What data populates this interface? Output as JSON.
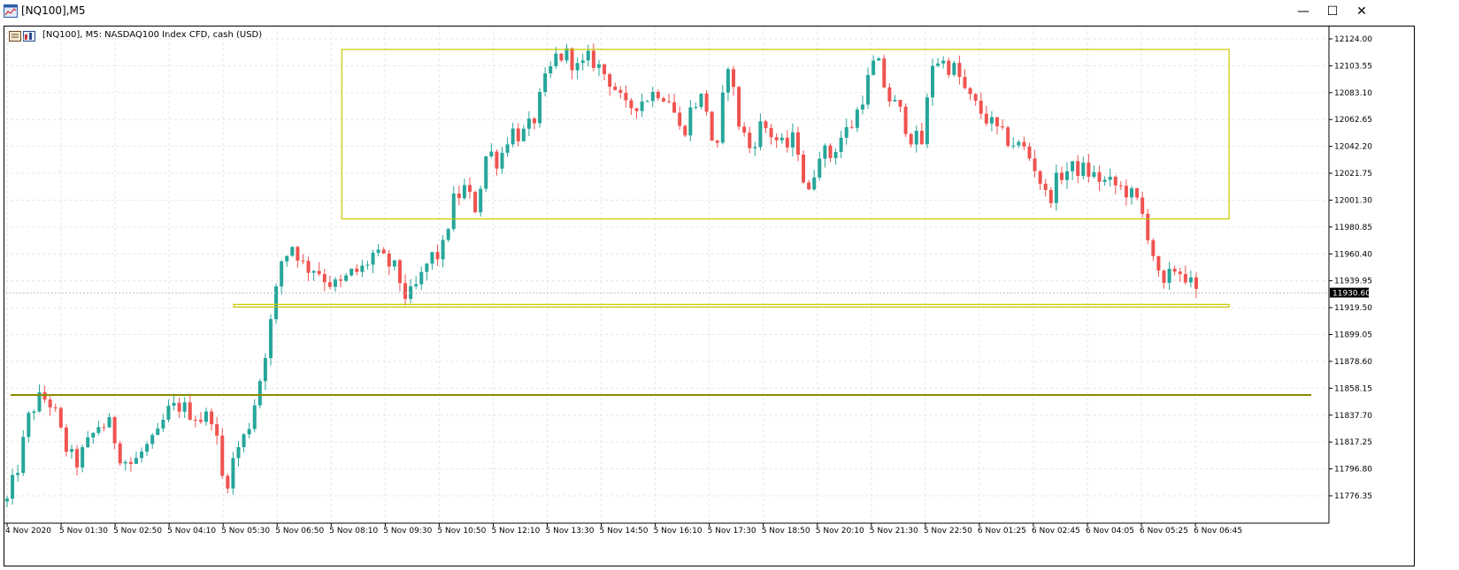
{
  "window": {
    "title": "[NQ100],M5",
    "minimize_glyph": "—",
    "maximize_glyph": "☐",
    "close_glyph": "✕"
  },
  "chart": {
    "title": "[NQ100], M5:  NASDAQ100 Index CFD, cash (USD)",
    "current_price": "11930.60",
    "colors": {
      "bull": "#26a69a",
      "bear": "#ef5350",
      "rect": "#c8c800",
      "hline": "#8b8b00",
      "grid": "#e6e6e6",
      "price_tag_bg": "#000000"
    }
  },
  "chart_data": {
    "type": "candlestick",
    "symbol": "[NQ100]",
    "timeframe": "M5",
    "y_ticks": [
      "12124.00",
      "12103.55",
      "12083.10",
      "12062.65",
      "12042.20",
      "12021.75",
      "12001.30",
      "11980.85",
      "11960.40",
      "11939.95",
      "11919.50",
      "11899.05",
      "11878.60",
      "11858.15",
      "11837.70",
      "11817.25",
      "11796.80",
      "11776.35"
    ],
    "x_ticks": [
      "4 Nov 2020",
      "5 Nov 01:30",
      "5 Nov 02:50",
      "5 Nov 04:10",
      "5 Nov 05:30",
      "5 Nov 06:50",
      "5 Nov 08:10",
      "5 Nov 09:30",
      "5 Nov 10:50",
      "5 Nov 12:10",
      "5 Nov 13:30",
      "5 Nov 14:50",
      "5 Nov 16:10",
      "5 Nov 17:30",
      "5 Nov 18:50",
      "5 Nov 20:10",
      "5 Nov 21:30",
      "5 Nov 22:50",
      "6 Nov 01:25",
      "6 Nov 02:45",
      "6 Nov 04:05",
      "6 Nov 05:25",
      "6 Nov 06:45"
    ],
    "ylim": [
      11766,
      12130
    ],
    "close_path": [
      11772,
      11800,
      11840,
      11852,
      11845,
      11815,
      11800,
      11815,
      11830,
      11830,
      11805,
      11800,
      11812,
      11818,
      11840,
      11845,
      11840,
      11835,
      11838,
      11780,
      11810,
      11825,
      11860,
      11905,
      11955,
      11968,
      11950,
      11950,
      11940,
      11935,
      11945,
      11948,
      11960,
      11955,
      11948,
      11925,
      11938,
      11958,
      11960,
      12000,
      12010,
      11995,
      12040,
      12030,
      12055,
      12050,
      12060,
      12090,
      12110,
      12112,
      12100,
      12110,
      12100,
      12090,
      12070,
      12075,
      12080,
      12085,
      12078,
      12050,
      12075,
      12080,
      12030,
      12110,
      12060,
      12040,
      12060,
      12050,
      12040,
      12050,
      12000,
      12040,
      12035,
      12050,
      12060,
      12085,
      12110,
      12080,
      12070,
      12050,
      12045,
      12110,
      12105,
      12100,
      12080,
      12070,
      12060,
      12050,
      12045,
      12040,
      12025,
      12000,
      12020,
      12025,
      12025,
      12020,
      12015,
      12012,
      12008,
      11998,
      11970,
      11930,
      11950,
      11945,
      11930
    ],
    "rectangles": [
      {
        "from": "5 Nov 08:10",
        "to": "6 Nov 06:45",
        "high": 12116,
        "low": 11987
      },
      {
        "from": "5 Nov 05:30",
        "to": "6 Nov 06:45",
        "high": 11922,
        "low": 11920
      }
    ],
    "horizontal_lines": [
      11853
    ]
  }
}
